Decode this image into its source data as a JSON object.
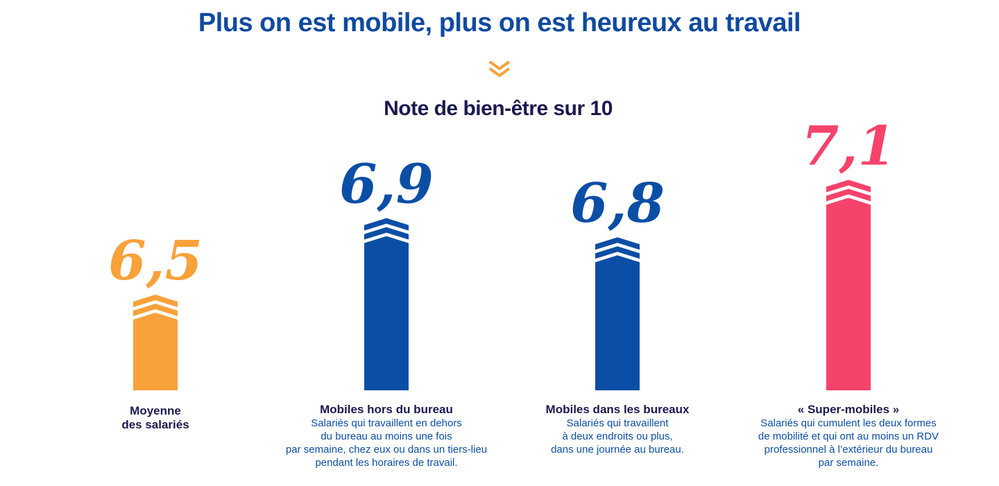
{
  "header": {
    "title": "Plus on est mobile, plus on est heureux au travail"
  },
  "colors": {
    "title": "#0f4aa0",
    "text_dark": "#1b1a4f",
    "orange": "#f9a13a",
    "blue": "#0b4ea5",
    "pink": "#f5436b"
  },
  "icons": {
    "divider": "double-chevron-down-icon",
    "bar_top": "double-chevron-up-icon"
  },
  "chart_data": {
    "type": "bar",
    "title": "Note de bien-être sur 10",
    "categories": [
      "Moyenne\ndes salariés",
      "Mobiles hors du bureau",
      "Mobiles dans les bureaux",
      "« Super-mobiles »"
    ],
    "descriptions": [
      "",
      "Salariés qui travaillent en dehors\ndu bureau au moins une fois\npar semaine, chez eux ou dans un tiers-lieu\npendant les horaires de travail.",
      "Salariés qui travaillent\nà deux endroits ou plus,\ndans une journée au bureau.",
      "Salariés qui cumulent les deux formes\nde mobilité et qui ont au moins un RDV\nprofessionnel à l’extérieur du bureau\npar semaine."
    ],
    "values": [
      6.5,
      6.9,
      6.8,
      7.1
    ],
    "value_labels": [
      "6,5",
      "6,9",
      "6,8",
      "7,1"
    ],
    "bar_colors": [
      "#f9a13a",
      "#0b4ea5",
      "#0b4ea5",
      "#f5436b"
    ],
    "xlabel": "",
    "ylabel": "",
    "grid": false,
    "legend": "none"
  }
}
